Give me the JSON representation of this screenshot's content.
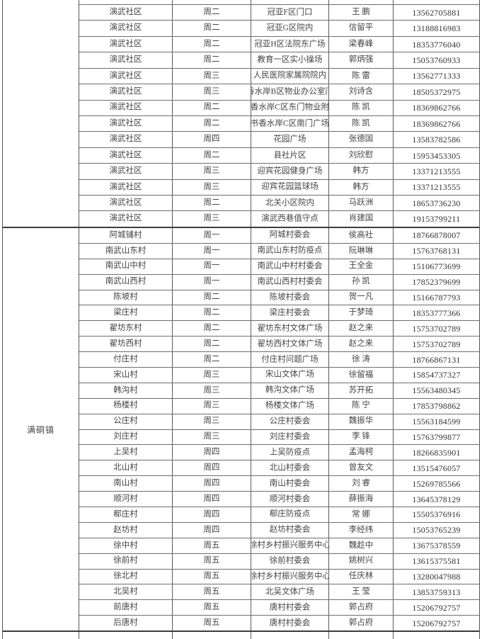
{
  "table": {
    "columns_note": [
      "town",
      "village_or_community",
      "weekday",
      "location",
      "contact",
      "phone"
    ],
    "accent_border_color": "#3c3c3c",
    "grid_line_color": "#5a5a5a",
    "sections": [
      {
        "town": "",
        "rows": [
          {
            "village": "演武社区",
            "day": "周二",
            "location": "冠亚F区门口",
            "contact": "王 鹏",
            "phone": "13562705881"
          },
          {
            "village": "演武社区",
            "day": "周二",
            "location": "冠亚G区院内",
            "contact": "信留平",
            "phone": "13188816983"
          },
          {
            "village": "演武社区",
            "day": "周二",
            "location": "冠亚H区法院东广场",
            "contact": "梁春峰",
            "phone": "18353776040"
          },
          {
            "village": "演武社区",
            "day": "周二",
            "location": "教育一区实小操场",
            "contact": "郭炳强",
            "phone": "15053760933"
          },
          {
            "village": "演武社区",
            "day": "周三",
            "location": "人民医院家属院院内",
            "contact": "陈 雷",
            "phone": "13562771333"
          },
          {
            "village": "演武社区",
            "day": "周三",
            "location": "书香水岸B区物业办公室门口",
            "contact": "刘诗含",
            "phone": "18505372975"
          },
          {
            "village": "演武社区",
            "day": "周二",
            "location": "书香水岸C区东门物业附近",
            "contact": "陈 凯",
            "phone": "18369862766"
          },
          {
            "village": "演武社区",
            "day": "周二",
            "location": "书香水岸C区南门广场",
            "contact": "陈 凯",
            "phone": "18369862766"
          },
          {
            "village": "演武社区",
            "day": "周四",
            "location": "花园广场",
            "contact": "张德国",
            "phone": "13583782586"
          },
          {
            "village": "演武社区",
            "day": "周二",
            "location": "县社片区",
            "contact": "刘欣慰",
            "phone": "15953453305"
          },
          {
            "village": "演武社区",
            "day": "周三",
            "location": "迎宾花园健身广场",
            "contact": "韩方",
            "phone": "13371213555"
          },
          {
            "village": "演武社区",
            "day": "周三",
            "location": "迎宾花园篮球场",
            "contact": "韩方",
            "phone": "13371213555"
          },
          {
            "village": "演武社区",
            "day": "周二",
            "location": "北关小区院内",
            "contact": "马跃洲",
            "phone": "18653736230"
          },
          {
            "village": "演武社区",
            "day": "周三",
            "location": "演武西巷值守点",
            "contact": "肖建国",
            "phone": "19153799211"
          }
        ]
      },
      {
        "town": "满硐镇",
        "rows": [
          {
            "village": "阿城铺村",
            "day": "周一",
            "location": "阿城村委会",
            "contact": "侯高社",
            "phone": "18766878007"
          },
          {
            "village": "南武山东村",
            "day": "周一",
            "location": "南武山东村防疫点",
            "contact": "阮琳琳",
            "phone": "15763768131"
          },
          {
            "village": "南武山中村",
            "day": "周一",
            "location": "南武山中村村委会",
            "contact": "王全金",
            "phone": "15106773699"
          },
          {
            "village": "南武山西村",
            "day": "周一",
            "location": "南武山西村村委会",
            "contact": "孙 凯",
            "phone": "17852379699"
          },
          {
            "village": "陈坡村",
            "day": "周二",
            "location": "陈坡村委会",
            "contact": "贺一凡",
            "phone": "15166787793"
          },
          {
            "village": "梁庄村",
            "day": "周二",
            "location": "梁庄村委会",
            "contact": "于梦琦",
            "phone": "18353777366"
          },
          {
            "village": "翟坊东村",
            "day": "周二",
            "location": "翟坊东村文体广场",
            "contact": "赵之来",
            "phone": "15753702789"
          },
          {
            "village": "翟坊西村",
            "day": "周二",
            "location": "翟坊西村文体广场",
            "contact": "赵之来",
            "phone": "15753702789"
          },
          {
            "village": "付庄村",
            "day": "周二",
            "location": "付庄村问题广场",
            "contact": "徐 涛",
            "phone": "18766867131"
          },
          {
            "village": "宋山村",
            "day": "周三",
            "location": "宋山文体广场",
            "contact": "徐留福",
            "phone": "15854737327"
          },
          {
            "village": "韩沟村",
            "day": "周三",
            "location": "韩沟文体广场",
            "contact": "苏开拓",
            "phone": "15563480345"
          },
          {
            "village": "杨楼村",
            "day": "周三",
            "location": "杨楼文体广场",
            "contact": "陈 宁",
            "phone": "17853798862"
          },
          {
            "village": "公庄村",
            "day": "周三",
            "location": "公庄村委会",
            "contact": "魏振华",
            "phone": "15563184599"
          },
          {
            "village": "刘庄村",
            "day": "周三",
            "location": "刘庄村委会",
            "contact": "李 锋",
            "phone": "15763799877"
          },
          {
            "village": "上吴村",
            "day": "周四",
            "location": "上吴防疫点",
            "contact": "孟海柯",
            "phone": "18266835901"
          },
          {
            "village": "北山村",
            "day": "周四",
            "location": "北山村委会",
            "contact": "曾友文",
            "phone": "13515476057"
          },
          {
            "village": "南山村",
            "day": "周四",
            "location": "南山村委会",
            "contact": "刘 睿",
            "phone": "15269785566"
          },
          {
            "village": "顺河村",
            "day": "周四",
            "location": "顺河村委会",
            "contact": "薛振海",
            "phone": "13645378129"
          },
          {
            "village": "郗庄村",
            "day": "周四",
            "location": "郗庄防疫点",
            "contact": "常 娜",
            "phone": "15505376916"
          },
          {
            "village": "赵坊村",
            "day": "周四",
            "location": "赵坊村委会",
            "contact": "李经纬",
            "phone": "15053765239"
          },
          {
            "village": "徐中村",
            "day": "周五",
            "location": "徐村乡村振兴服务中心",
            "contact": "魏趁中",
            "phone": "13675378559"
          },
          {
            "village": "徐前村",
            "day": "周五",
            "location": "徐前村委会",
            "contact": "姚树兴",
            "phone": "13615375581"
          },
          {
            "village": "徐北村",
            "day": "周五",
            "location": "徐村乡村振兴服务中心",
            "contact": "任庆林",
            "phone": "13280047988"
          },
          {
            "village": "北吴村",
            "day": "周五",
            "location": "北吴文体广场",
            "contact": "王 莹",
            "phone": "13853759313"
          },
          {
            "village": "前唐村",
            "day": "周五",
            "location": "唐村村委会",
            "contact": "郭占府",
            "phone": "15206792757"
          },
          {
            "village": "后唐村",
            "day": "周五",
            "location": "唐村村委会",
            "contact": "郭占府",
            "phone": "15206792757"
          }
        ]
      }
    ]
  }
}
